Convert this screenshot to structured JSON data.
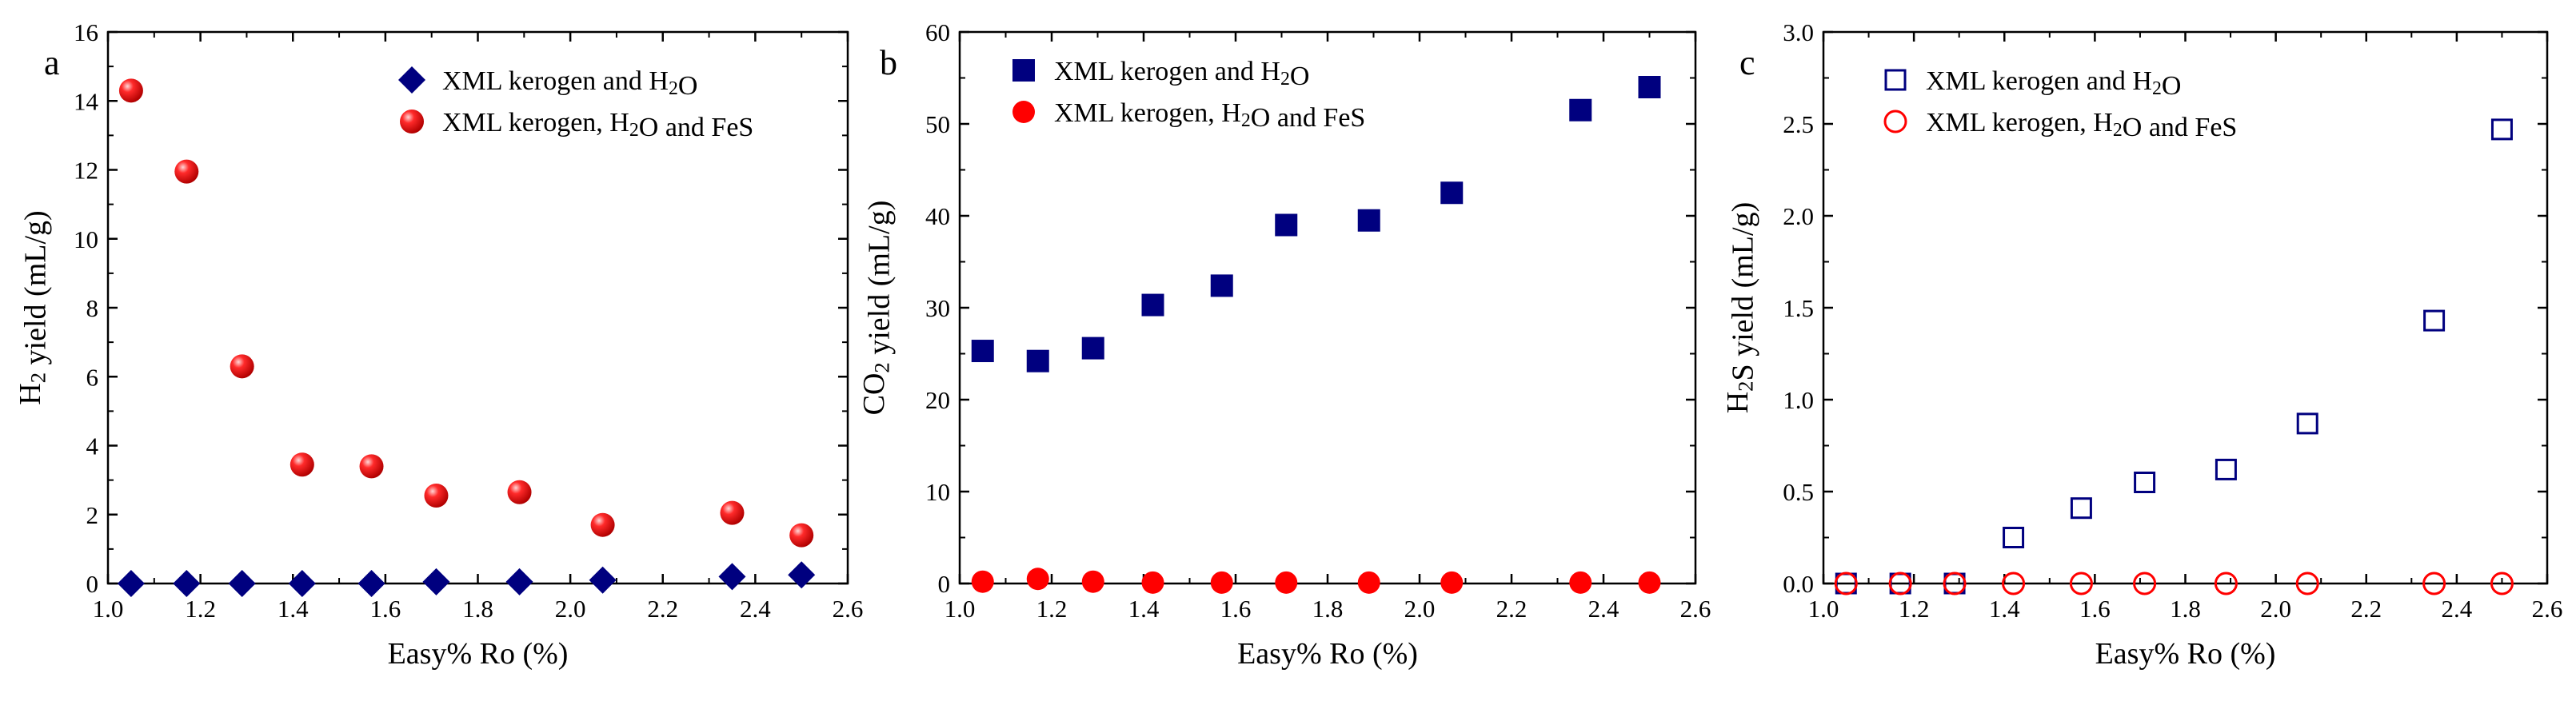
{
  "chart_data": [
    {
      "type": "scatter",
      "panel": "a",
      "xlabel": "Easy% Ro (%)",
      "ylabel": "H2 yield (mL/g)",
      "xlim": [
        1.0,
        2.6
      ],
      "ylim": [
        0,
        16
      ],
      "xticks": [
        "1.0",
        "1.2",
        "1.4",
        "1.6",
        "1.8",
        "2.0",
        "2.2",
        "2.4",
        "2.6"
      ],
      "yticks": [
        "0",
        "2",
        "4",
        "6",
        "8",
        "10",
        "12",
        "14",
        "16"
      ],
      "legend_position": "top-right",
      "x": [
        1.05,
        1.17,
        1.29,
        1.42,
        1.57,
        1.71,
        1.89,
        2.07,
        2.35,
        2.5
      ],
      "series": [
        {
          "name": "XML kerogen and H2O",
          "marker": "diamond-filled",
          "color": "#00007f",
          "values": [
            0.0,
            0.0,
            0.0,
            0.0,
            0.0,
            0.05,
            0.05,
            0.1,
            0.2,
            0.25
          ]
        },
        {
          "name": "XML kerogen, H2O and FeS",
          "marker": "sphere-filled",
          "color": "#e30000",
          "values": [
            14.3,
            11.95,
            6.3,
            3.45,
            3.4,
            2.55,
            2.65,
            1.7,
            2.05,
            1.4
          ]
        }
      ]
    },
    {
      "type": "scatter",
      "panel": "b",
      "xlabel": "Easy% Ro (%)",
      "ylabel": "CO2 yield (mL/g)",
      "xlim": [
        1.0,
        2.6
      ],
      "ylim": [
        0,
        60
      ],
      "xticks": [
        "1.0",
        "1.2",
        "1.4",
        "1.6",
        "1.8",
        "2.0",
        "2.2",
        "2.4",
        "2.6"
      ],
      "yticks": [
        "0",
        "10",
        "20",
        "30",
        "40",
        "50",
        "60"
      ],
      "legend_position": "top-left",
      "x": [
        1.05,
        1.17,
        1.29,
        1.42,
        1.57,
        1.71,
        1.89,
        2.07,
        2.35,
        2.5
      ],
      "series": [
        {
          "name": "XML kerogen and H2O",
          "marker": "square-filled",
          "color": "#00007f",
          "values": [
            25.3,
            24.2,
            25.6,
            30.3,
            32.4,
            39.0,
            39.5,
            42.5,
            51.5,
            54.0
          ]
        },
        {
          "name": "XML kerogen, H2O and FeS",
          "marker": "circle-filled",
          "color": "#ff0000",
          "values": [
            0.2,
            0.5,
            0.2,
            0.1,
            0.1,
            0.1,
            0.1,
            0.1,
            0.1,
            0.1
          ]
        }
      ]
    },
    {
      "type": "scatter",
      "panel": "c",
      "xlabel": "Easy% Ro (%)",
      "ylabel": "H2S yield (mL/g)",
      "xlim": [
        1.0,
        2.6
      ],
      "ylim": [
        0,
        3.0
      ],
      "xticks": [
        "1.0",
        "1.2",
        "1.4",
        "1.6",
        "1.8",
        "2.0",
        "2.2",
        "2.4",
        "2.6"
      ],
      "yticks": [
        "0.0",
        "0.5",
        "1.0",
        "1.5",
        "2.0",
        "2.5",
        "3.0"
      ],
      "legend_position": "top-left",
      "x": [
        1.05,
        1.17,
        1.29,
        1.42,
        1.57,
        1.71,
        1.89,
        2.07,
        2.35,
        2.5
      ],
      "series": [
        {
          "name": "XML kerogen and H2O",
          "marker": "square-open",
          "color": "#00007f",
          "values": [
            0.0,
            0.0,
            0.0,
            0.25,
            0.41,
            0.55,
            0.62,
            0.87,
            1.43,
            2.47
          ]
        },
        {
          "name": "XML kerogen, H2O and FeS",
          "marker": "circle-open",
          "color": "#ff0000",
          "values": [
            0.0,
            0.0,
            0.0,
            0.0,
            0.0,
            0.0,
            0.0,
            0.0,
            0.0,
            0.0
          ]
        }
      ]
    }
  ]
}
